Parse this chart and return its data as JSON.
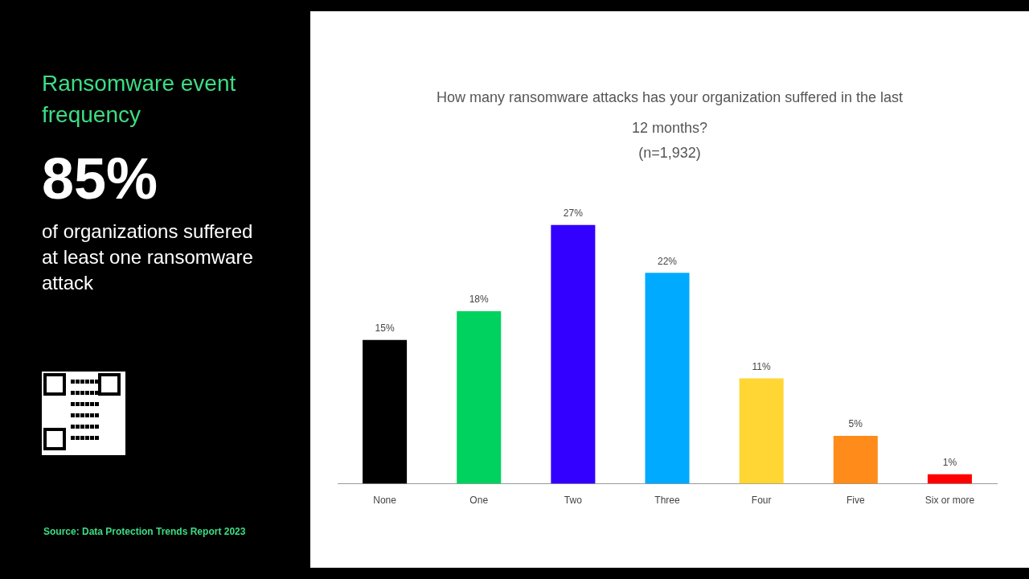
{
  "chart_data": [
    {
      "type": "other",
      "title": "Ransomware event frequency",
      "annotations": [
        "85%",
        "of organizations suffered at least one ransomware attack",
        "Source: Data Protection Trends Report 2023"
      ]
    },
    {
      "type": "bar",
      "title": "How many ransomware attacks has your organization suffered in the last 12 months?",
      "subtitle": "(n=1,932)",
      "categories": [
        "None",
        "One",
        "Two",
        "Three",
        "Four",
        "Five",
        "Six or more"
      ],
      "values": [
        15,
        18,
        27,
        22,
        11,
        5,
        1
      ],
      "colors": [
        "#000000",
        "#00d25f",
        "#3300ff",
        "#00aaff",
        "#ffd633",
        "#ff8c1a",
        "#ff0000"
      ],
      "value_labels": [
        "15%",
        "18%",
        "27%",
        "22%",
        "11%",
        "5%",
        "1%"
      ],
      "tick_labels": "x"
    }
  ]
}
